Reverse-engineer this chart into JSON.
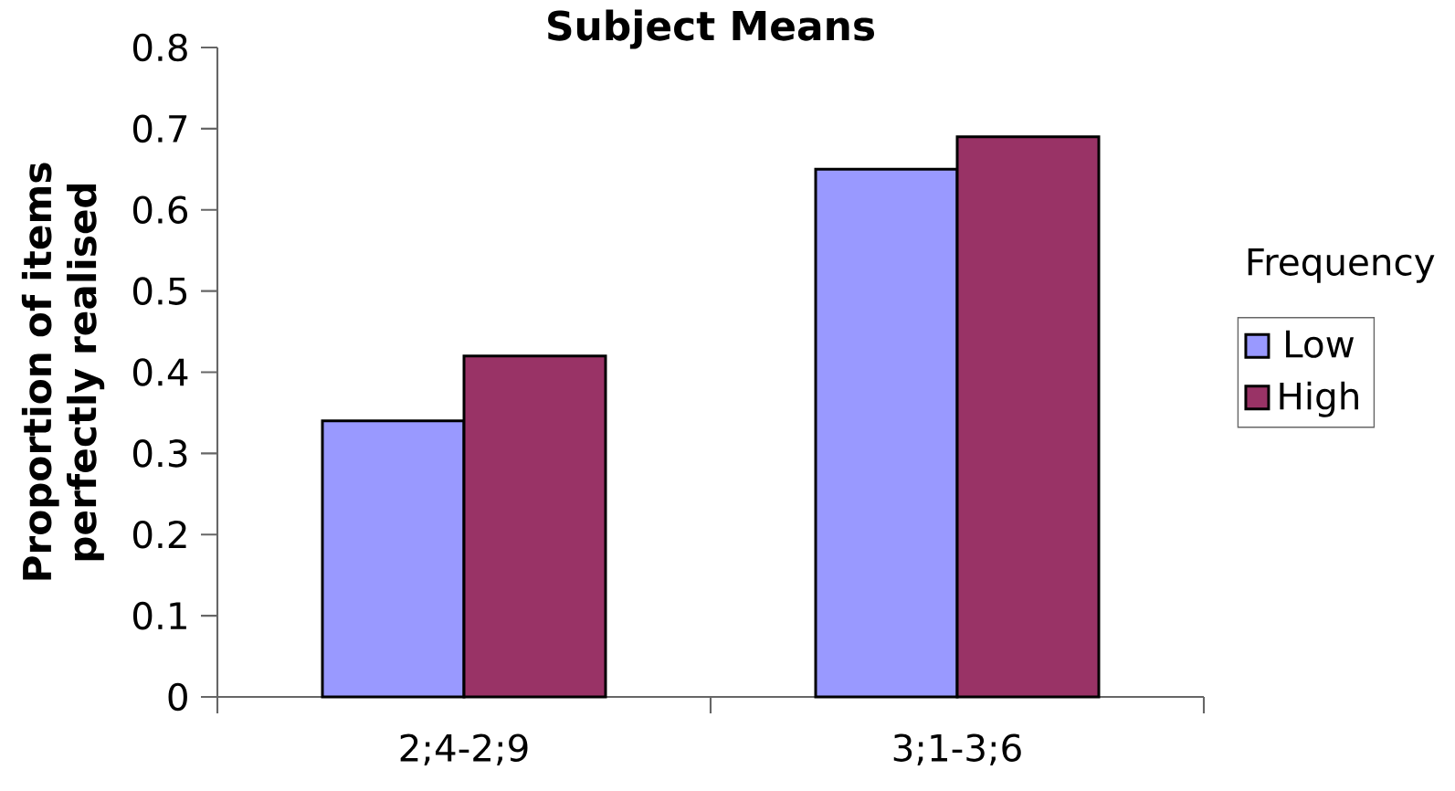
{
  "chart_data": {
    "type": "bar",
    "title": "Subject Means",
    "ylabel": "Proportion of items perfectly realised",
    "legend_title": "Frequency",
    "categories": [
      "2;4-2;9",
      "3;1-3;6"
    ],
    "series": [
      {
        "name": "Low",
        "color": "#9999ff",
        "values": [
          0.34,
          0.65
        ]
      },
      {
        "name": "High",
        "color": "#993366",
        "values": [
          0.42,
          0.69
        ]
      }
    ],
    "ylim": [
      0,
      0.8
    ],
    "yticks": [
      0,
      0.1,
      0.2,
      0.3,
      0.4,
      0.5,
      0.6,
      0.7,
      0.8
    ],
    "grid": false,
    "legend": "right"
  }
}
